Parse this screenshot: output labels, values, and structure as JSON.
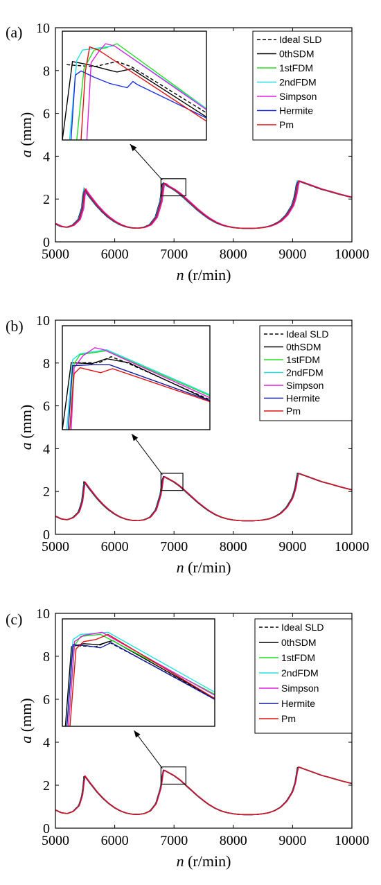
{
  "chart_data": [
    {
      "type": "line",
      "panel_label": "(a)",
      "xlabel_var": "n",
      "xlabel_unit": "(r/min)",
      "ylabel_var": "a",
      "ylabel_unit": "(mm)",
      "xlim": [
        5000,
        10000
      ],
      "ylim": [
        0,
        10
      ],
      "xticks": [
        "5000",
        "6000",
        "7000",
        "8000",
        "9000",
        "10000"
      ],
      "yticks": [
        "0",
        "2",
        "4",
        "6",
        "8",
        "10"
      ],
      "legend": [
        "Ideal SLD",
        "0thSDM",
        "1stFDM",
        "2ndFDM",
        "Simpson",
        "Hermite",
        "Pm"
      ],
      "colors": [
        "#000000",
        "#000000",
        "#22dd22",
        "#22e0e0",
        "#e020e0",
        "#1a2ee0",
        "#e01010"
      ],
      "legend_position": "top-right",
      "inset_box_x": [
        6780,
        7200
      ],
      "inset_box_y": [
        2.15,
        2.95
      ],
      "base_curve": {
        "x": [
          5000,
          5100,
          5200,
          5300,
          5400,
          5460,
          5490,
          5520,
          5600,
          5700,
          5800,
          5900,
          6000,
          6100,
          6200,
          6300,
          6400,
          6500,
          6600,
          6700,
          6780,
          6820,
          6850,
          6900,
          7000,
          7100,
          7200,
          7300,
          7400,
          7500,
          7600,
          7700,
          7800,
          7900,
          8000,
          8100,
          8200,
          8300,
          8400,
          8500,
          8600,
          8700,
          8800,
          8900,
          9000,
          9050,
          9090,
          9120,
          9200,
          9300,
          9400,
          9500,
          9600,
          9700,
          9800,
          9900,
          10000
        ],
        "y": [
          0.85,
          0.72,
          0.68,
          0.78,
          1.05,
          1.6,
          2.5,
          2.35,
          2.05,
          1.7,
          1.4,
          1.15,
          0.95,
          0.8,
          0.7,
          0.65,
          0.64,
          0.68,
          0.8,
          1.15,
          1.9,
          2.75,
          2.72,
          2.6,
          2.45,
          2.25,
          2.0,
          1.75,
          1.5,
          1.28,
          1.08,
          0.92,
          0.8,
          0.72,
          0.67,
          0.64,
          0.63,
          0.63,
          0.64,
          0.67,
          0.72,
          0.82,
          0.98,
          1.25,
          1.7,
          2.15,
          2.85,
          2.83,
          2.75,
          2.65,
          2.55,
          2.45,
          2.38,
          2.3,
          2.22,
          2.15,
          2.08
        ]
      },
      "series": [
        {
          "name": "Ideal SLD",
          "dash": true,
          "dx": 0,
          "inset": [
            [
              0.03,
              8.4
            ],
            [
              0.22,
              8.3
            ],
            [
              0.38,
              8.55
            ],
            [
              0.48,
              8.3
            ],
            [
              1.0,
              6.1
            ]
          ]
        },
        {
          "name": "0thSDM",
          "dx": -18,
          "inset": [
            [
              0.0,
              4.8
            ],
            [
              0.07,
              8.55
            ],
            [
              0.18,
              8.4
            ],
            [
              0.32,
              8.15
            ],
            [
              0.38,
              8.05
            ],
            [
              0.48,
              8.2
            ],
            [
              1.0,
              5.9
            ]
          ]
        },
        {
          "name": "1stFDM",
          "dx": 12,
          "inset": [
            [
              0.1,
              4.8
            ],
            [
              0.15,
              8.2
            ],
            [
              0.22,
              9.1
            ],
            [
              0.3,
              9.2
            ],
            [
              0.38,
              9.4
            ],
            [
              1.0,
              6.3
            ]
          ]
        },
        {
          "name": "2ndFDM",
          "dx": -10,
          "inset": [
            [
              0.05,
              4.8
            ],
            [
              0.1,
              8.6
            ],
            [
              0.14,
              9.1
            ],
            [
              0.25,
              9.2
            ],
            [
              0.36,
              9.3
            ],
            [
              1.0,
              6.3
            ]
          ]
        },
        {
          "name": "Simpson",
          "dx": 22,
          "inset": [
            [
              0.17,
              4.8
            ],
            [
              0.2,
              8.5
            ],
            [
              0.25,
              9.0
            ],
            [
              0.3,
              9.4
            ],
            [
              0.36,
              9.3
            ],
            [
              1.0,
              6.25
            ]
          ]
        },
        {
          "name": "Hermite",
          "dx": -5,
          "inset": [
            [
              0.06,
              4.8
            ],
            [
              0.09,
              7.9
            ],
            [
              0.13,
              8.1
            ],
            [
              0.22,
              7.8
            ],
            [
              0.33,
              7.5
            ],
            [
              0.45,
              7.3
            ],
            [
              0.49,
              7.6
            ],
            [
              0.52,
              7.45
            ],
            [
              1.0,
              5.85
            ]
          ]
        },
        {
          "name": "Pm",
          "dx": 4,
          "inset": [
            [
              0.13,
              4.8
            ],
            [
              0.16,
              8.1
            ],
            [
              0.19,
              9.25
            ],
            [
              0.25,
              9.1
            ],
            [
              1.0,
              5.7
            ]
          ]
        }
      ]
    },
    {
      "type": "line",
      "panel_label": "(b)",
      "xlabel_var": "n",
      "xlabel_unit": "(r/min)",
      "ylabel_var": "a",
      "ylabel_unit": "(mm)",
      "xlim": [
        5000,
        10000
      ],
      "ylim": [
        0,
        10
      ],
      "xticks": [
        "5000",
        "6000",
        "7000",
        "8000",
        "9000",
        "10000"
      ],
      "yticks": [
        "0",
        "2",
        "4",
        "6",
        "8",
        "10"
      ],
      "legend": [
        "Ideal SLD",
        "0thSDM",
        "1stFDM",
        "2ndFDM",
        "Simpson",
        "Hermite",
        "Pm"
      ],
      "colors": [
        "#000000",
        "#000000",
        "#22dd22",
        "#22e0e0",
        "#e020e0",
        "#101a9e",
        "#e01010"
      ],
      "legend_position": "top-right",
      "inset_box_x": [
        6780,
        7150
      ],
      "inset_box_y": [
        2.05,
        2.85
      ],
      "base_curve": {
        "x": [
          5000,
          5100,
          5200,
          5300,
          5400,
          5460,
          5490,
          5520,
          5600,
          5700,
          5800,
          5900,
          6000,
          6100,
          6200,
          6300,
          6400,
          6500,
          6600,
          6700,
          6780,
          6820,
          6850,
          6900,
          7000,
          7100,
          7200,
          7300,
          7400,
          7500,
          7600,
          7700,
          7800,
          7900,
          8000,
          8100,
          8200,
          8300,
          8400,
          8500,
          8600,
          8700,
          8800,
          8900,
          9000,
          9050,
          9090,
          9120,
          9200,
          9300,
          9400,
          9500,
          9600,
          9700,
          9800,
          9900,
          10000
        ],
        "y": [
          0.85,
          0.72,
          0.68,
          0.78,
          1.05,
          1.6,
          2.45,
          2.35,
          2.05,
          1.7,
          1.4,
          1.15,
          0.95,
          0.8,
          0.7,
          0.65,
          0.64,
          0.68,
          0.8,
          1.15,
          1.9,
          2.7,
          2.68,
          2.6,
          2.45,
          2.25,
          2.0,
          1.75,
          1.5,
          1.28,
          1.08,
          0.92,
          0.8,
          0.72,
          0.67,
          0.64,
          0.63,
          0.63,
          0.64,
          0.67,
          0.72,
          0.82,
          0.98,
          1.25,
          1.7,
          2.15,
          2.85,
          2.83,
          2.75,
          2.65,
          2.55,
          2.45,
          2.38,
          2.3,
          2.22,
          2.15,
          2.08
        ]
      },
      "series": [
        {
          "name": "Ideal SLD",
          "dash": true,
          "dx": 0,
          "inset": [
            [
              0.1,
              8.15
            ],
            [
              0.25,
              8.15
            ],
            [
              0.33,
              8.45
            ],
            [
              0.42,
              8.2
            ],
            [
              1.0,
              6.3
            ]
          ]
        },
        {
          "name": "0thSDM",
          "dx": -12,
          "inset": [
            [
              0.0,
              4.8
            ],
            [
              0.06,
              8.15
            ],
            [
              0.2,
              8.1
            ],
            [
              0.3,
              8.35
            ],
            [
              0.45,
              8.15
            ],
            [
              1.0,
              6.25
            ]
          ]
        },
        {
          "name": "1stFDM",
          "dx": 6,
          "inset": [
            [
              0.05,
              4.8
            ],
            [
              0.08,
              8.1
            ],
            [
              0.12,
              8.55
            ],
            [
              0.3,
              8.75
            ],
            [
              1.0,
              6.5
            ]
          ]
        },
        {
          "name": "2ndFDM",
          "dx": -6,
          "inset": [
            [
              0.03,
              4.8
            ],
            [
              0.07,
              8.3
            ],
            [
              0.12,
              8.6
            ],
            [
              0.3,
              8.8
            ],
            [
              1.0,
              6.55
            ]
          ]
        },
        {
          "name": "Simpson",
          "dx": 8,
          "inset": [
            [
              0.06,
              4.8
            ],
            [
              0.08,
              7.9
            ],
            [
              0.14,
              8.5
            ],
            [
              0.22,
              8.9
            ],
            [
              0.28,
              8.8
            ],
            [
              1.0,
              6.4
            ]
          ]
        },
        {
          "name": "Hermite",
          "dx": -3,
          "inset": [
            [
              0.04,
              4.8
            ],
            [
              0.07,
              8.0
            ],
            [
              0.2,
              8.05
            ],
            [
              0.32,
              8.05
            ],
            [
              1.0,
              6.25
            ]
          ]
        },
        {
          "name": "Pm",
          "dx": 3,
          "inset": [
            [
              0.05,
              4.8
            ],
            [
              0.08,
              7.6
            ],
            [
              0.12,
              7.9
            ],
            [
              0.26,
              7.65
            ],
            [
              0.34,
              7.85
            ],
            [
              1.0,
              6.2
            ]
          ]
        }
      ]
    },
    {
      "type": "line",
      "panel_label": "(c)",
      "xlabel_var": "n",
      "xlabel_unit": "(r/min)",
      "ylabel_var": "a",
      "ylabel_unit": "(mm)",
      "xlim": [
        5000,
        10000
      ],
      "ylim": [
        0,
        10
      ],
      "xticks": [
        "5000",
        "6000",
        "7000",
        "8000",
        "9000",
        "10000"
      ],
      "yticks": [
        "0",
        "2",
        "4",
        "6",
        "8",
        "10"
      ],
      "legend": [
        "Ideal SLD",
        "0thSDM",
        "1stFDM",
        "2ndFDM",
        "Simpson",
        "Hermite",
        "Pm"
      ],
      "colors": [
        "#000000",
        "#000000",
        "#22dd22",
        "#22e0e0",
        "#e020e0",
        "#101a9e",
        "#e01010"
      ],
      "legend_position": "top-right",
      "inset_box_x": [
        6780,
        7200
      ],
      "inset_box_y": [
        2.05,
        2.85
      ],
      "base_curve": {
        "x": [
          5000,
          5100,
          5200,
          5300,
          5400,
          5460,
          5490,
          5520,
          5600,
          5700,
          5800,
          5900,
          6000,
          6100,
          6200,
          6300,
          6400,
          6500,
          6600,
          6700,
          6780,
          6820,
          6850,
          6900,
          7000,
          7100,
          7200,
          7300,
          7400,
          7500,
          7600,
          7700,
          7800,
          7900,
          8000,
          8100,
          8200,
          8300,
          8400,
          8500,
          8600,
          8700,
          8800,
          8900,
          9000,
          9050,
          9090,
          9120,
          9200,
          9300,
          9400,
          9500,
          9600,
          9700,
          9800,
          9900,
          10000
        ],
        "y": [
          0.85,
          0.72,
          0.68,
          0.78,
          1.05,
          1.6,
          2.45,
          2.35,
          2.05,
          1.7,
          1.4,
          1.15,
          0.95,
          0.8,
          0.7,
          0.65,
          0.64,
          0.68,
          0.8,
          1.15,
          1.9,
          2.7,
          2.68,
          2.6,
          2.45,
          2.25,
          2.0,
          1.75,
          1.5,
          1.28,
          1.08,
          0.92,
          0.8,
          0.72,
          0.67,
          0.64,
          0.63,
          0.63,
          0.64,
          0.67,
          0.72,
          0.82,
          0.98,
          1.25,
          1.7,
          2.15,
          2.85,
          2.83,
          2.75,
          2.65,
          2.55,
          2.45,
          2.38,
          2.3,
          2.22,
          2.15,
          2.08
        ]
      },
      "series": [
        {
          "name": "Ideal SLD",
          "dash": true,
          "dx": 0,
          "inset": [
            [
              0.1,
              8.7
            ],
            [
              0.22,
              8.65
            ],
            [
              0.3,
              8.9
            ],
            [
              1.0,
              6.15
            ]
          ]
        },
        {
          "name": "0thSDM",
          "dx": -8,
          "inset": [
            [
              0.02,
              4.8
            ],
            [
              0.06,
              8.65
            ],
            [
              0.14,
              8.8
            ],
            [
              0.24,
              8.75
            ],
            [
              0.33,
              8.95
            ],
            [
              1.0,
              6.15
            ]
          ]
        },
        {
          "name": "1stFDM",
          "dx": 4,
          "inset": [
            [
              0.04,
              4.8
            ],
            [
              0.08,
              8.7
            ],
            [
              0.12,
              9.15
            ],
            [
              0.25,
              9.25
            ],
            [
              1.0,
              6.35
            ]
          ]
        },
        {
          "name": "2ndFDM",
          "dx": -4,
          "inset": [
            [
              0.03,
              4.8
            ],
            [
              0.07,
              9.0
            ],
            [
              0.12,
              9.25
            ],
            [
              0.3,
              9.35
            ],
            [
              1.0,
              6.45
            ]
          ]
        },
        {
          "name": "Simpson",
          "dx": 6,
          "inset": [
            [
              0.04,
              4.8
            ],
            [
              0.08,
              8.9
            ],
            [
              0.14,
              9.2
            ],
            [
              0.26,
              9.35
            ],
            [
              1.0,
              6.3
            ]
          ]
        },
        {
          "name": "Hermite",
          "dx": -2,
          "inset": [
            [
              0.03,
              4.8
            ],
            [
              0.07,
              8.75
            ],
            [
              0.16,
              8.7
            ],
            [
              0.25,
              8.6
            ],
            [
              0.32,
              8.85
            ],
            [
              1.0,
              6.1
            ]
          ]
        },
        {
          "name": "Pm",
          "dx": 2,
          "inset": [
            [
              0.05,
              4.8
            ],
            [
              0.09,
              8.55
            ],
            [
              0.14,
              8.9
            ],
            [
              0.22,
              9.0
            ],
            [
              0.3,
              9.25
            ],
            [
              1.0,
              6.15
            ]
          ]
        }
      ]
    }
  ]
}
